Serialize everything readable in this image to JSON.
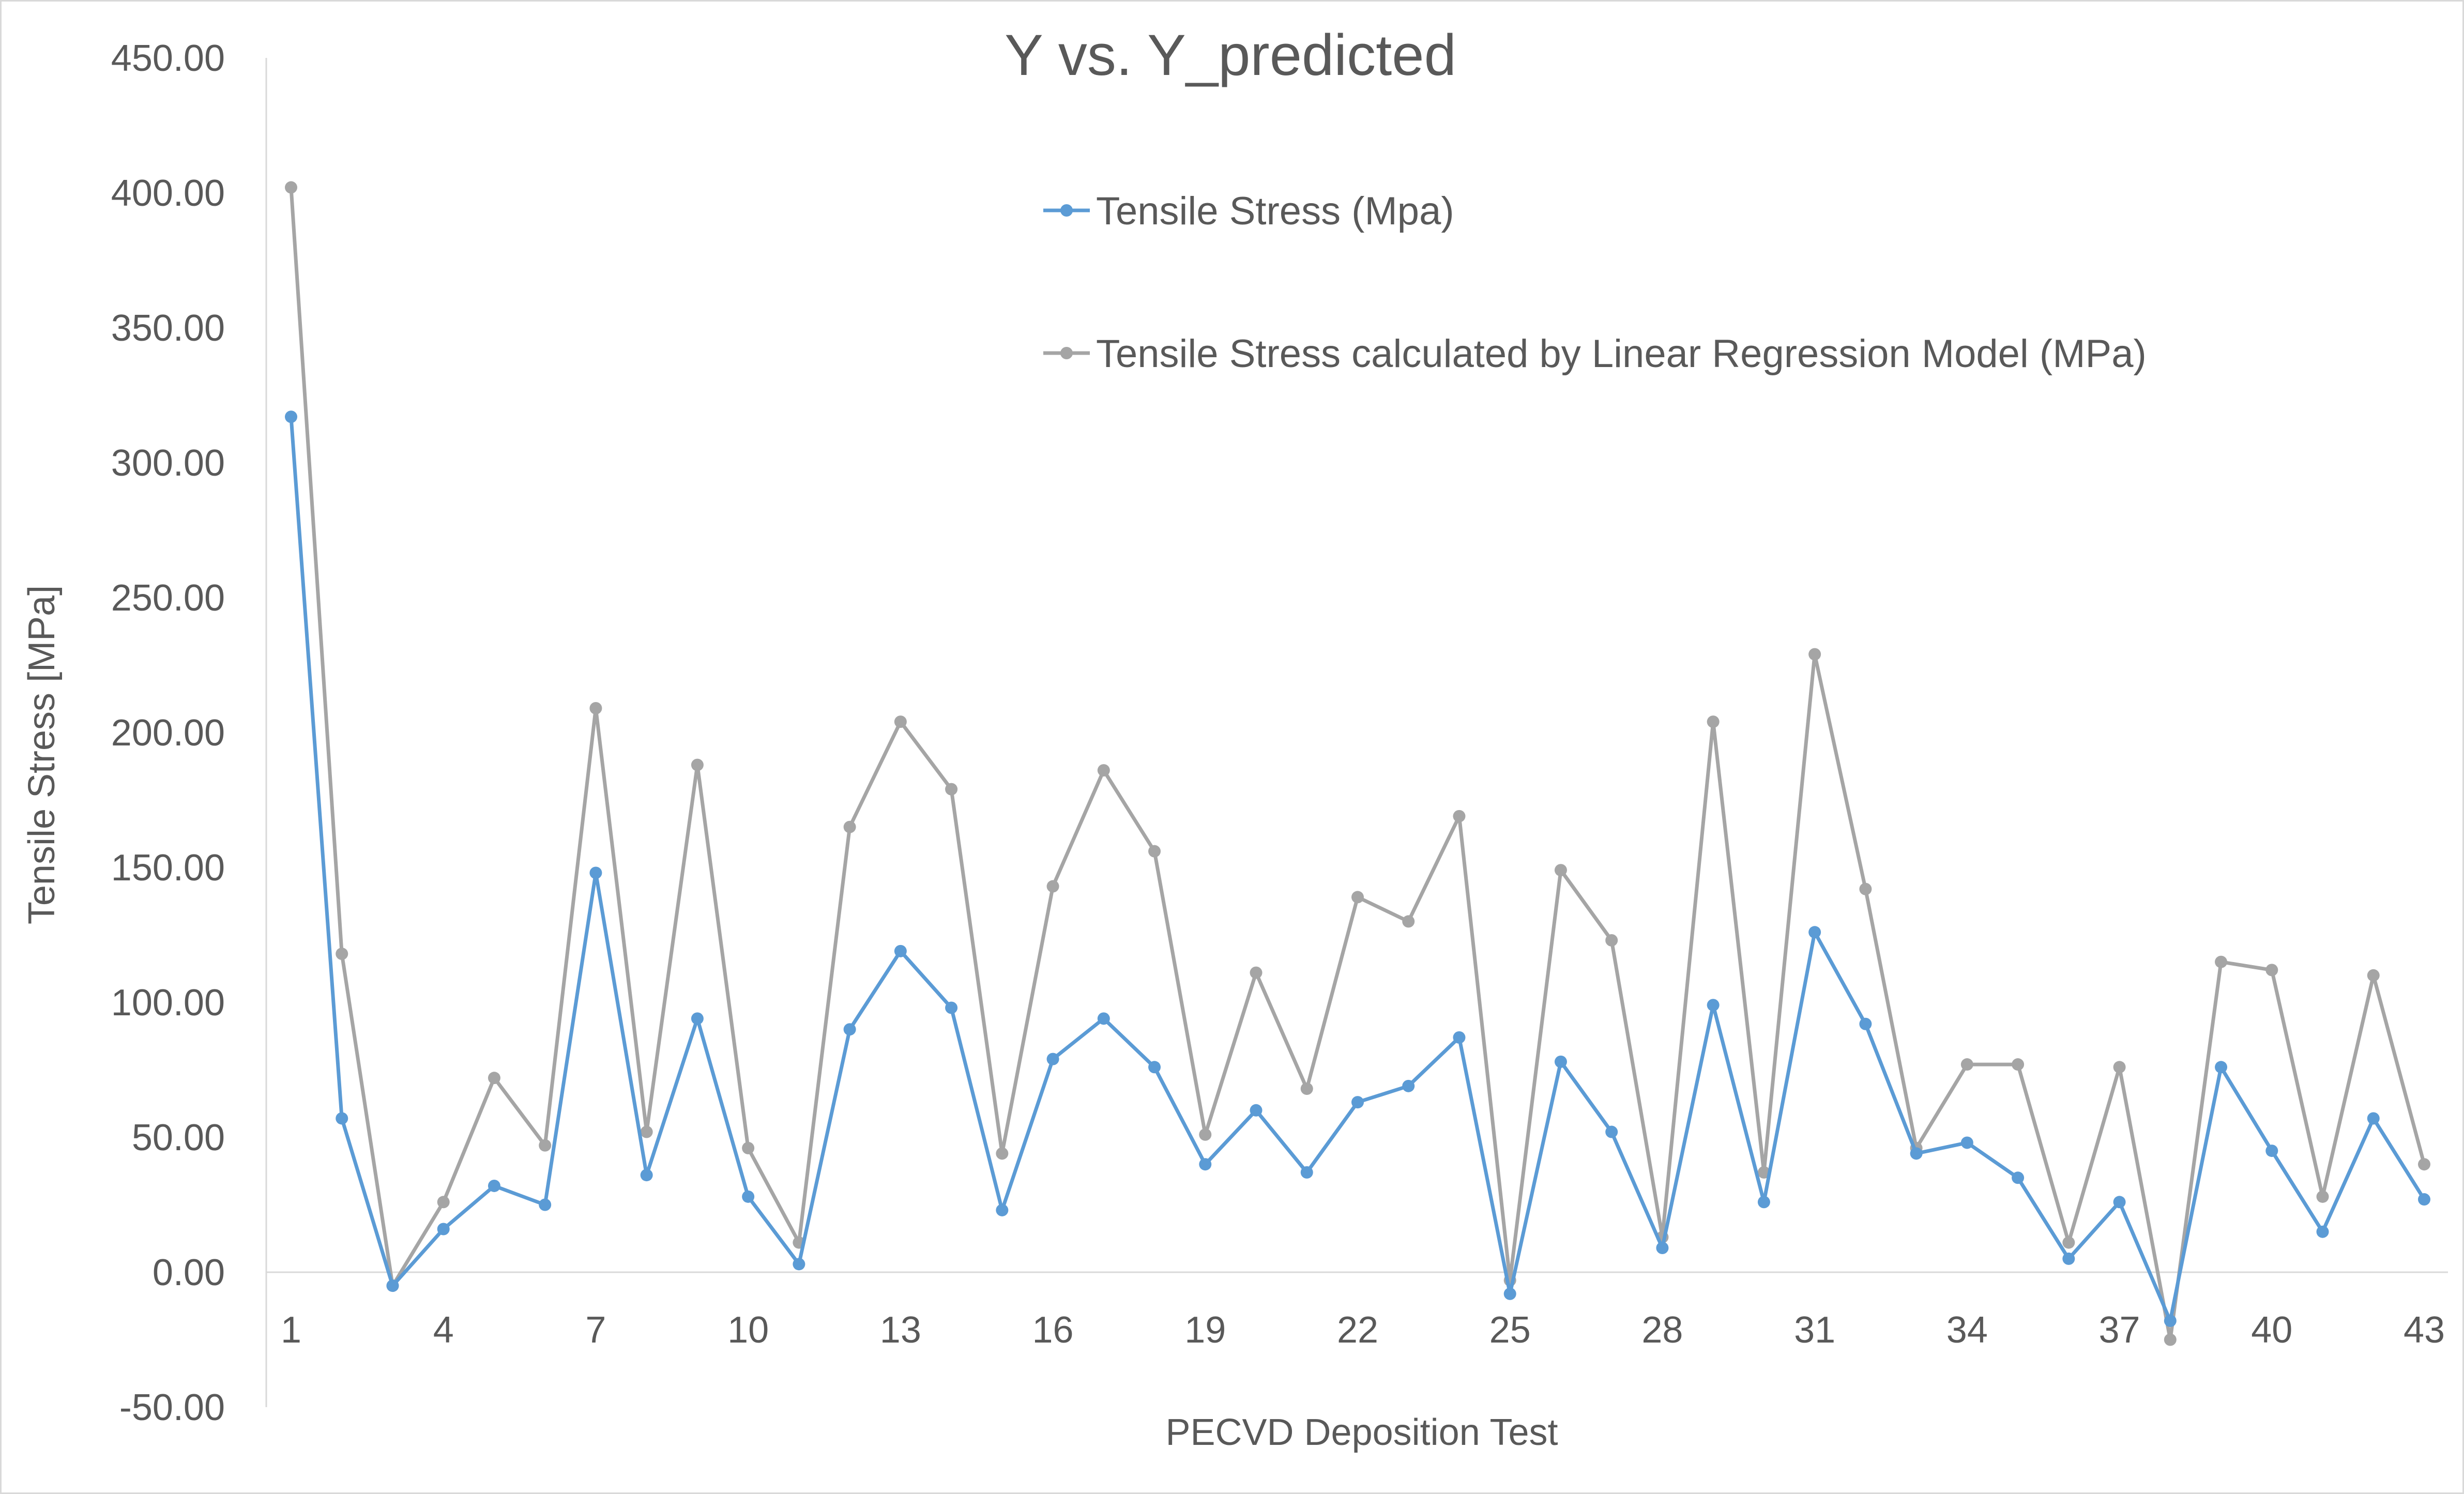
{
  "chart_data": {
    "type": "line",
    "title": "Y vs. Y_predicted",
    "xlabel": "PECVD Deposition Test",
    "ylabel": "Tensile Stress [MPa]",
    "ylim": [
      -50,
      450
    ],
    "y_ticks": [
      -50,
      0,
      50,
      100,
      150,
      200,
      250,
      300,
      350,
      400,
      450
    ],
    "y_tick_labels": [
      "-50.00",
      "0.00",
      "50.00",
      "100.00",
      "150.00",
      "200.00",
      "250.00",
      "300.00",
      "350.00",
      "400.00",
      "450.00"
    ],
    "x": [
      1,
      2,
      3,
      4,
      5,
      6,
      7,
      8,
      9,
      10,
      11,
      12,
      13,
      14,
      15,
      16,
      17,
      18,
      19,
      20,
      21,
      22,
      23,
      24,
      25,
      26,
      27,
      28,
      29,
      30,
      31,
      32,
      33,
      34,
      35,
      36,
      37,
      38,
      39,
      40,
      41,
      42,
      43
    ],
    "x_tick_labels": [
      "1",
      "4",
      "7",
      "10",
      "13",
      "16",
      "19",
      "22",
      "25",
      "28",
      "31",
      "34",
      "37",
      "40",
      "43"
    ],
    "grid": false,
    "legend_position": "top-center",
    "series": [
      {
        "name": "Tensile Stress (Mpa)",
        "color": "#5b9bd5",
        "values": [
          317,
          57,
          -5,
          16,
          32,
          25,
          148,
          36,
          94,
          28,
          3,
          90,
          119,
          98,
          23,
          79,
          94,
          76,
          40,
          60,
          37,
          63,
          69,
          87,
          -8,
          78,
          52,
          9,
          99,
          26,
          126,
          92,
          44,
          48,
          35,
          5,
          26,
          -18,
          76,
          45,
          15,
          57,
          27
        ]
      },
      {
        "name": "Tensile Stress calculated by Linear Regression Model (MPa)",
        "color": "#a5a5a5",
        "values": [
          402,
          118,
          -5,
          26,
          72,
          47,
          209,
          52,
          188,
          46,
          11,
          165,
          204,
          179,
          44,
          143,
          186,
          156,
          51,
          111,
          68,
          139,
          130,
          169,
          -3,
          149,
          123,
          13,
          204,
          37,
          229,
          142,
          46,
          77,
          77,
          11,
          76,
          -25,
          115,
          112,
          28,
          110,
          40
        ]
      }
    ]
  }
}
